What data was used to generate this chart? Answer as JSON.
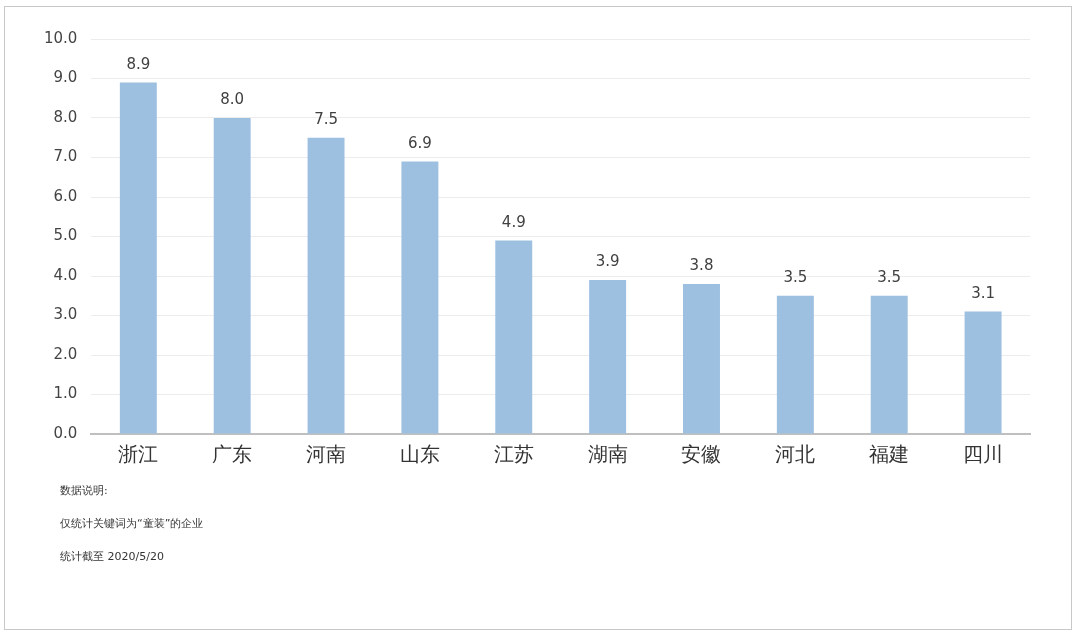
{
  "chart_data": {
    "type": "bar",
    "categories": [
      "浙江",
      "广东",
      "河南",
      "山东",
      "江苏",
      "湖南",
      "安徽",
      "河北",
      "福建",
      "四川"
    ],
    "values": [
      8.9,
      8.0,
      7.5,
      6.9,
      4.9,
      3.9,
      3.8,
      3.5,
      3.5,
      3.1
    ],
    "color": "#9dbfe0",
    "ylim": [
      0,
      10
    ],
    "yticks": [
      {
        "value": 0,
        "label": "0.0"
      },
      {
        "value": 1,
        "label": "1.0"
      },
      {
        "value": 2,
        "label": "2.0"
      },
      {
        "value": 3,
        "label": "3.0"
      },
      {
        "value": 4,
        "label": "4.0"
      },
      {
        "value": 5,
        "label": "5.0"
      },
      {
        "value": 6,
        "label": "6.0"
      },
      {
        "value": 7,
        "label": "7.0"
      },
      {
        "value": 8,
        "label": "8.0"
      },
      {
        "value": 9,
        "label": "9.0"
      },
      {
        "value": 10,
        "label": "10.0"
      }
    ],
    "grid": "y",
    "value_labels": [
      "8.9",
      "8.0",
      "7.5",
      "6.9",
      "4.9",
      "3.9",
      "3.8",
      "3.5",
      "3.5",
      "3.1"
    ],
    "annotations": [
      "数据说明:",
      "仅统计关键词为“童装”的企业",
      "统计截至 2020/5/20"
    ]
  }
}
